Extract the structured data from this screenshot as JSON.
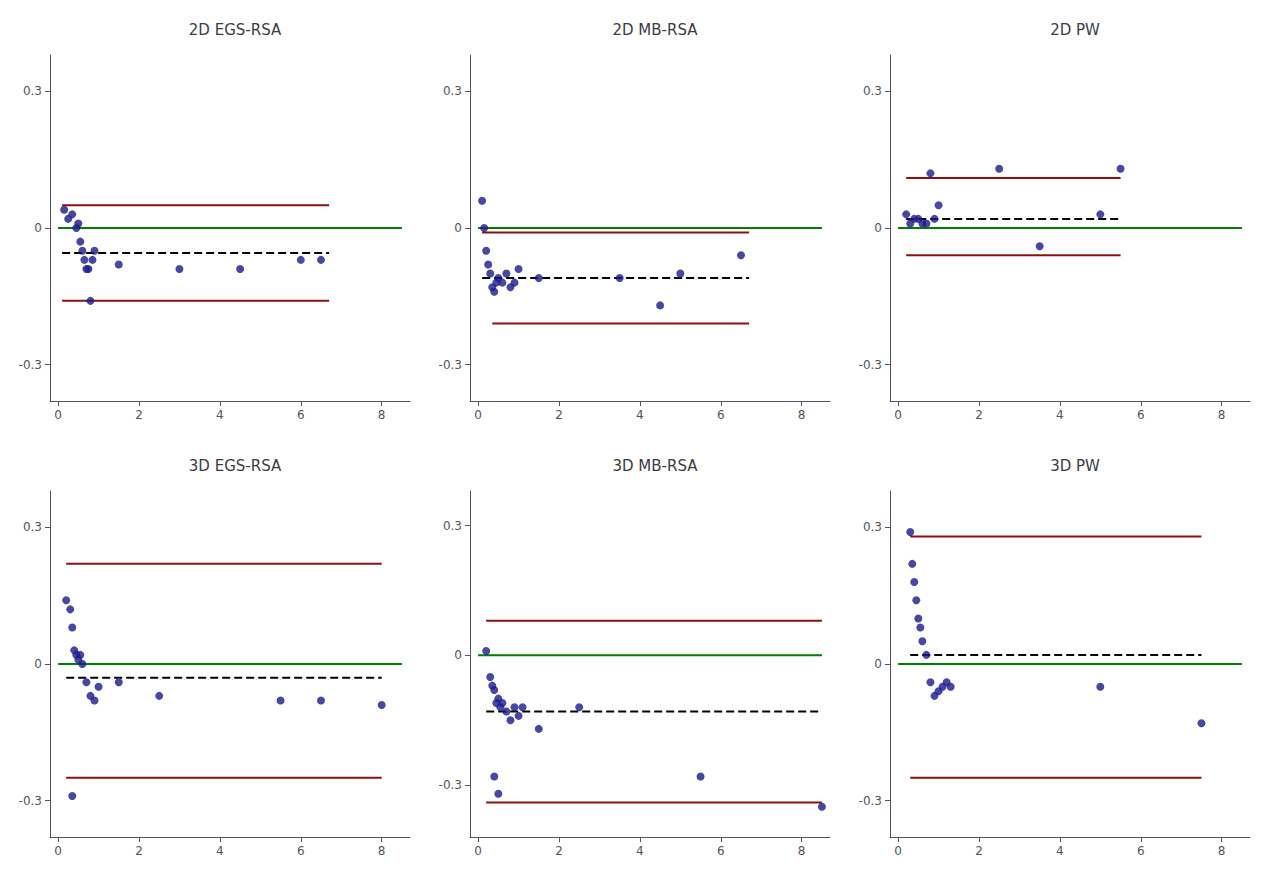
{
  "chart_data": [
    {
      "type": "scatter",
      "title": "2D EGS-RSA",
      "x": [
        0.15,
        0.25,
        0.35,
        0.45,
        0.5,
        0.55,
        0.6,
        0.65,
        0.7,
        0.75,
        0.8,
        0.85,
        0.9,
        1.5,
        3.0,
        4.5,
        6.0,
        6.5
      ],
      "values": [
        0.04,
        0.02,
        0.03,
        -0.0,
        0.01,
        -0.03,
        -0.05,
        -0.07,
        -0.09,
        -0.09,
        -0.16,
        -0.07,
        -0.05,
        -0.08,
        -0.09,
        -0.09,
        -0.07,
        -0.07
      ],
      "color": "#1a1a8c",
      "hlines": [
        {
          "y": 0,
          "x": [
            0.0,
            8.5
          ],
          "color": "#008000",
          "line_style": "solid"
        },
        {
          "y": 0.05,
          "x": [
            0.1,
            6.7
          ],
          "color": "#8B1010",
          "line_style": "solid"
        },
        {
          "y": -0.16,
          "x": [
            0.1,
            6.7
          ],
          "color": "#8B1010",
          "line_style": "solid"
        },
        {
          "y": -0.055,
          "x": [
            0.1,
            6.7
          ],
          "color": "black",
          "line_style": "dashed"
        }
      ],
      "xlim": [
        -0.2,
        8.7
      ],
      "ylim": [
        -0.38,
        0.38
      ],
      "yticks": [
        -0.3,
        0,
        0.3
      ],
      "xticks": [
        0,
        2,
        4,
        6,
        8
      ],
      "grid": false
    },
    {
      "type": "scatter",
      "title": "2D MB-RSA",
      "x": [
        0.1,
        0.15,
        0.2,
        0.25,
        0.3,
        0.35,
        0.4,
        0.45,
        0.5,
        0.6,
        0.7,
        0.8,
        0.9,
        1.0,
        1.5,
        3.5,
        4.5,
        5.0,
        6.5
      ],
      "values": [
        0.06,
        -0.0,
        -0.05,
        -0.08,
        -0.1,
        -0.13,
        -0.14,
        -0.12,
        -0.11,
        -0.12,
        -0.1,
        -0.13,
        -0.12,
        -0.09,
        -0.11,
        -0.11,
        -0.17,
        -0.1,
        -0.06
      ],
      "color": "#1a1a8c",
      "hlines": [
        {
          "y": 0,
          "x": [
            0.0,
            8.5
          ],
          "color": "#008000",
          "line_style": "solid"
        },
        {
          "y": -0.01,
          "x": [
            0.1,
            6.7
          ],
          "color": "#8B1010",
          "line_style": "solid"
        },
        {
          "y": -0.21,
          "x": [
            0.35,
            6.7
          ],
          "color": "#8B1010",
          "line_style": "solid"
        },
        {
          "y": -0.11,
          "x": [
            0.1,
            6.7
          ],
          "color": "black",
          "line_style": "dashed"
        }
      ],
      "xlim": [
        -0.2,
        8.7
      ],
      "ylim": [
        -0.38,
        0.38
      ],
      "yticks": [
        -0.3,
        0,
        0.3
      ],
      "xticks": [
        0,
        2,
        4,
        6,
        8
      ],
      "grid": false
    },
    {
      "type": "scatter",
      "title": "2D PW",
      "x": [
        0.2,
        0.3,
        0.4,
        0.5,
        0.6,
        0.7,
        0.8,
        0.9,
        1.0,
        2.5,
        3.5,
        5.0,
        5.5
      ],
      "values": [
        0.03,
        0.01,
        0.02,
        0.02,
        0.01,
        0.01,
        0.12,
        0.02,
        0.05,
        0.13,
        -0.04,
        0.03,
        0.13
      ],
      "color": "#1a1a8c",
      "hlines": [
        {
          "y": 0,
          "x": [
            0.0,
            8.5
          ],
          "color": "#008000",
          "line_style": "solid"
        },
        {
          "y": 0.11,
          "x": [
            0.2,
            5.5
          ],
          "color": "#8B1010",
          "line_style": "solid"
        },
        {
          "y": -0.06,
          "x": [
            0.2,
            5.5
          ],
          "color": "#8B1010",
          "line_style": "solid"
        },
        {
          "y": 0.02,
          "x": [
            0.2,
            5.5
          ],
          "color": "black",
          "line_style": "dashed"
        }
      ],
      "xlim": [
        -0.2,
        8.7
      ],
      "ylim": [
        -0.38,
        0.38
      ],
      "yticks": [
        -0.3,
        0,
        0.3
      ],
      "xticks": [
        0,
        2,
        4,
        6,
        8
      ],
      "grid": false
    },
    {
      "type": "scatter",
      "title": "3D EGS-RSA",
      "x": [
        0.2,
        0.3,
        0.35,
        0.4,
        0.45,
        0.5,
        0.55,
        0.6,
        0.7,
        0.8,
        0.9,
        1.0,
        1.5,
        2.5,
        5.5,
        6.5,
        8.0,
        0.35
      ],
      "values": [
        0.14,
        0.12,
        0.08,
        0.03,
        0.02,
        0.01,
        0.02,
        0.0,
        -0.04,
        -0.07,
        -0.08,
        -0.05,
        -0.04,
        -0.07,
        -0.08,
        -0.08,
        -0.09,
        -0.29
      ],
      "color": "#1a1a8c",
      "hlines": [
        {
          "y": 0,
          "x": [
            0.0,
            8.5
          ],
          "color": "#008000",
          "line_style": "solid"
        },
        {
          "y": 0.22,
          "x": [
            0.2,
            8.0
          ],
          "color": "#8B1010",
          "line_style": "solid"
        },
        {
          "y": -0.25,
          "x": [
            0.2,
            8.0
          ],
          "color": "#8B1010",
          "line_style": "solid"
        },
        {
          "y": -0.03,
          "x": [
            0.2,
            8.0
          ],
          "color": "black",
          "line_style": "dashed"
        }
      ],
      "xlim": [
        -0.2,
        8.7
      ],
      "ylim": [
        -0.38,
        0.38
      ],
      "yticks": [
        -0.3,
        0,
        0.3
      ],
      "xticks": [
        0,
        2,
        4,
        6,
        8
      ],
      "grid": false
    },
    {
      "type": "scatter",
      "title": "3D MB-RSA",
      "x": [
        0.2,
        0.3,
        0.35,
        0.4,
        0.45,
        0.5,
        0.55,
        0.6,
        0.7,
        0.8,
        0.9,
        1.0,
        1.1,
        1.5,
        2.5,
        5.5,
        8.5,
        0.4,
        0.5
      ],
      "values": [
        0.01,
        -0.05,
        -0.07,
        -0.08,
        -0.11,
        -0.1,
        -0.12,
        -0.11,
        -0.13,
        -0.15,
        -0.12,
        -0.14,
        -0.12,
        -0.17,
        -0.12,
        -0.28,
        -0.35,
        -0.28,
        -0.32
      ],
      "color": "#1a1a8c",
      "hlines": [
        {
          "y": 0,
          "x": [
            0.0,
            8.5
          ],
          "color": "#008000",
          "line_style": "solid"
        },
        {
          "y": 0.08,
          "x": [
            0.2,
            8.5
          ],
          "color": "#8B1010",
          "line_style": "solid"
        },
        {
          "y": -0.34,
          "x": [
            0.2,
            8.5
          ],
          "color": "#8B1010",
          "line_style": "solid"
        },
        {
          "y": -0.13,
          "x": [
            0.2,
            8.5
          ],
          "color": "black",
          "line_style": "dashed"
        }
      ],
      "xlim": [
        -0.2,
        8.7
      ],
      "ylim": [
        -0.42,
        0.38
      ],
      "yticks": [
        -0.3,
        0,
        0.3
      ],
      "xticks": [
        0,
        2,
        4,
        6,
        8
      ],
      "grid": false
    },
    {
      "type": "scatter",
      "title": "3D PW",
      "x": [
        0.3,
        0.35,
        0.4,
        0.45,
        0.5,
        0.55,
        0.6,
        0.7,
        0.8,
        0.9,
        1.0,
        1.1,
        1.2,
        1.3,
        5.0,
        7.5
      ],
      "values": [
        0.29,
        0.22,
        0.18,
        0.14,
        0.1,
        0.08,
        0.05,
        0.02,
        -0.04,
        -0.07,
        -0.06,
        -0.05,
        -0.04,
        -0.05,
        -0.05,
        -0.13
      ],
      "color": "#1a1a8c",
      "hlines": [
        {
          "y": 0,
          "x": [
            0.0,
            8.5
          ],
          "color": "#008000",
          "line_style": "solid"
        },
        {
          "y": 0.28,
          "x": [
            0.3,
            7.5
          ],
          "color": "#8B1010",
          "line_style": "solid"
        },
        {
          "y": -0.25,
          "x": [
            0.3,
            7.5
          ],
          "color": "#8B1010",
          "line_style": "solid"
        },
        {
          "y": 0.02,
          "x": [
            0.3,
            7.5
          ],
          "color": "black",
          "line_style": "dashed"
        }
      ],
      "xlim": [
        -0.2,
        8.7
      ],
      "ylim": [
        -0.38,
        0.38
      ],
      "yticks": [
        -0.3,
        0,
        0.3
      ],
      "xticks": [
        0,
        2,
        4,
        6,
        8
      ],
      "grid": false
    }
  ]
}
